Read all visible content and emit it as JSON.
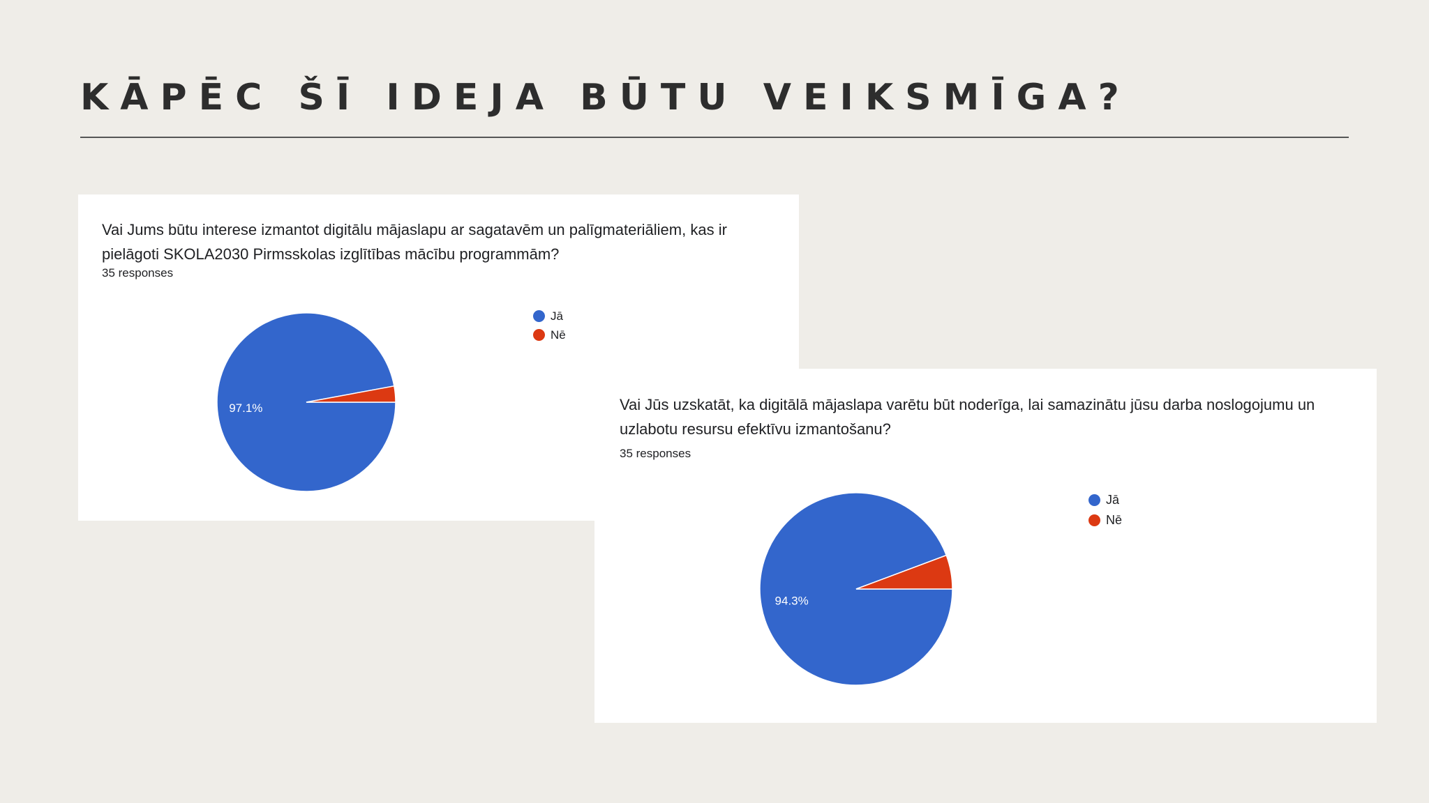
{
  "slide": {
    "title": "KĀPĒC ŠĪ IDEJA BŪTU VEIKSMĪGA?"
  },
  "colors": {
    "background": "#efede8",
    "ja": "#3366cc",
    "ne": "#dc3912"
  },
  "chart_data": [
    {
      "type": "pie",
      "title": "Vai Jums būtu interese izmantot digitālu mājaslapu ar sagatavēm un palīgmateriāliem, kas ir pielāgoti SKOLA2030 Pirmsskolas izglītības mācību programmām?",
      "subtitle": "35 responses",
      "labels": [
        "Jā",
        "Nē"
      ],
      "values": [
        97.1,
        2.9
      ],
      "slice_labels": [
        "97.1%",
        ""
      ],
      "colors": [
        "#3366cc",
        "#dc3912"
      ],
      "legend": "right"
    },
    {
      "type": "pie",
      "title": "Vai Jūs uzskatāt, ka digitālā mājaslapa varētu būt noderīga, lai samazinātu jūsu darba noslogojumu un uzlabotu resursu efektīvu izmantošanu?",
      "subtitle": "35 responses",
      "labels": [
        "Jā",
        "Nē"
      ],
      "values": [
        94.3,
        5.7
      ],
      "slice_labels": [
        "94.3%",
        ""
      ],
      "colors": [
        "#3366cc",
        "#dc3912"
      ],
      "legend": "right"
    }
  ]
}
